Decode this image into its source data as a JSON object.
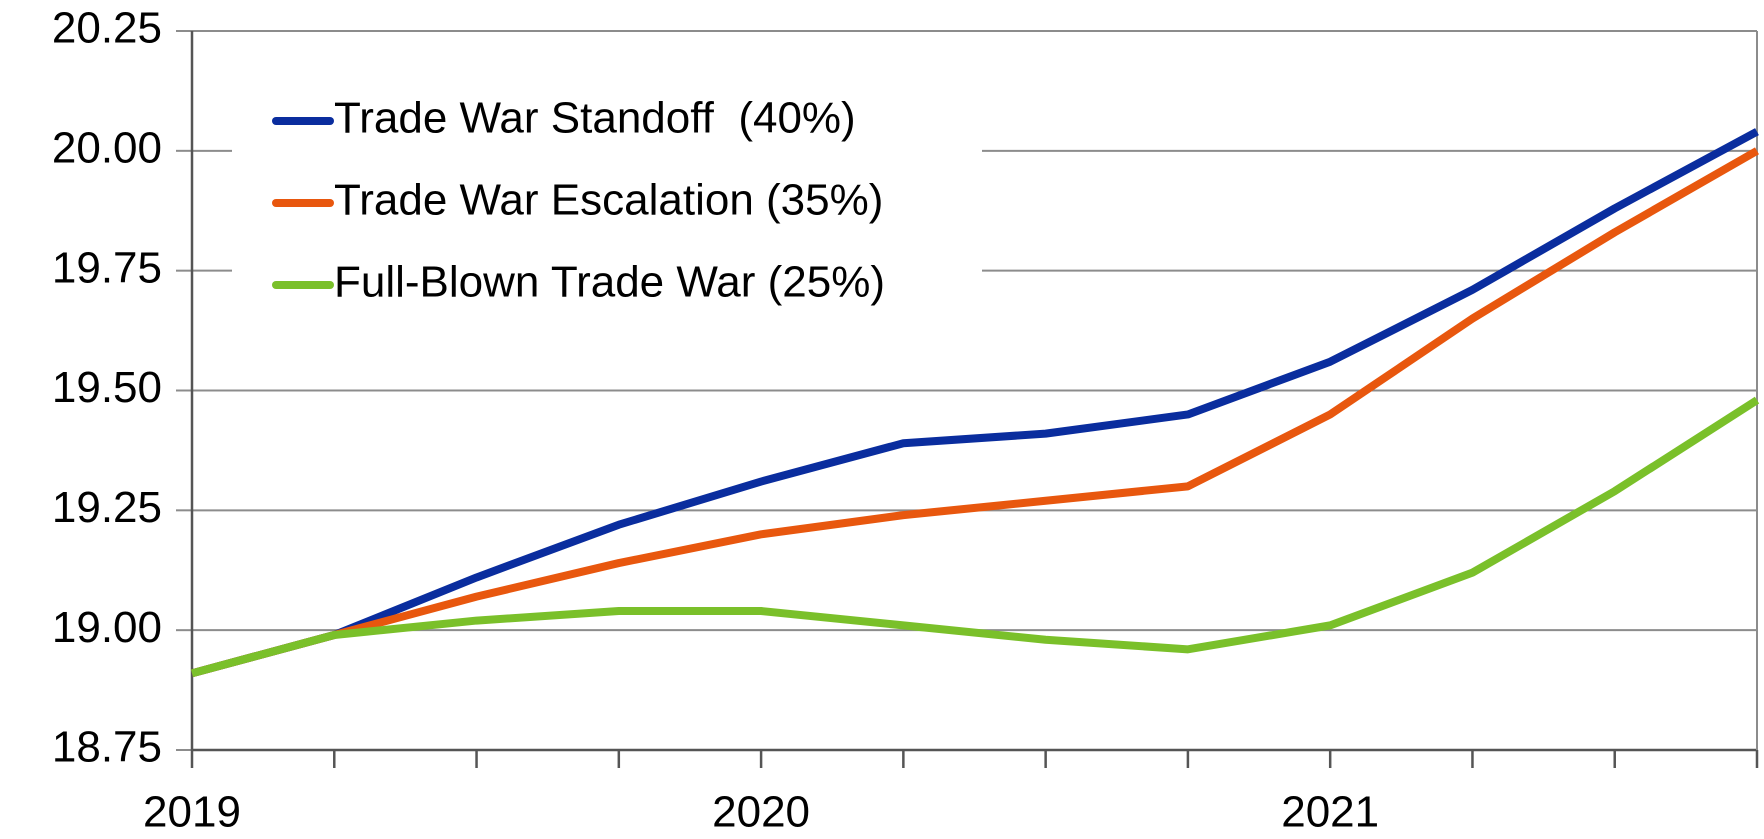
{
  "chart_data": {
    "type": "line",
    "categories": [
      "2019",
      null,
      null,
      null,
      "2020",
      null,
      null,
      null,
      "2021",
      null,
      null,
      null
    ],
    "series": [
      {
        "name": "Trade War Standoff  (40%)",
        "color": "#0a2d9e",
        "values": [
          18.91,
          18.99,
          19.11,
          19.22,
          19.31,
          19.39,
          19.41,
          19.45,
          19.56,
          19.71,
          19.88,
          20.04
        ]
      },
      {
        "name": "Trade War Escalation (35%)",
        "color": "#e8570e",
        "values": [
          18.91,
          18.99,
          19.07,
          19.14,
          19.2,
          19.24,
          19.27,
          19.3,
          19.45,
          19.65,
          19.83,
          20.0
        ]
      },
      {
        "name": "Full-Blown Trade War (25%)",
        "color": "#7ac02a",
        "values": [
          18.91,
          18.99,
          19.02,
          19.04,
          19.04,
          19.01,
          18.98,
          18.96,
          19.01,
          19.12,
          19.29,
          19.48
        ]
      }
    ],
    "ylim": [
      18.75,
      20.25
    ],
    "yticks": [
      18.75,
      {
        "value": 19,
        "label": "19.00"
      },
      19.25,
      {
        "value": 19.5,
        "label": "19.50"
      },
      19.75,
      {
        "value": 20,
        "label": "20.00"
      },
      20.25
    ],
    "grid": true,
    "legend": "top-left"
  }
}
